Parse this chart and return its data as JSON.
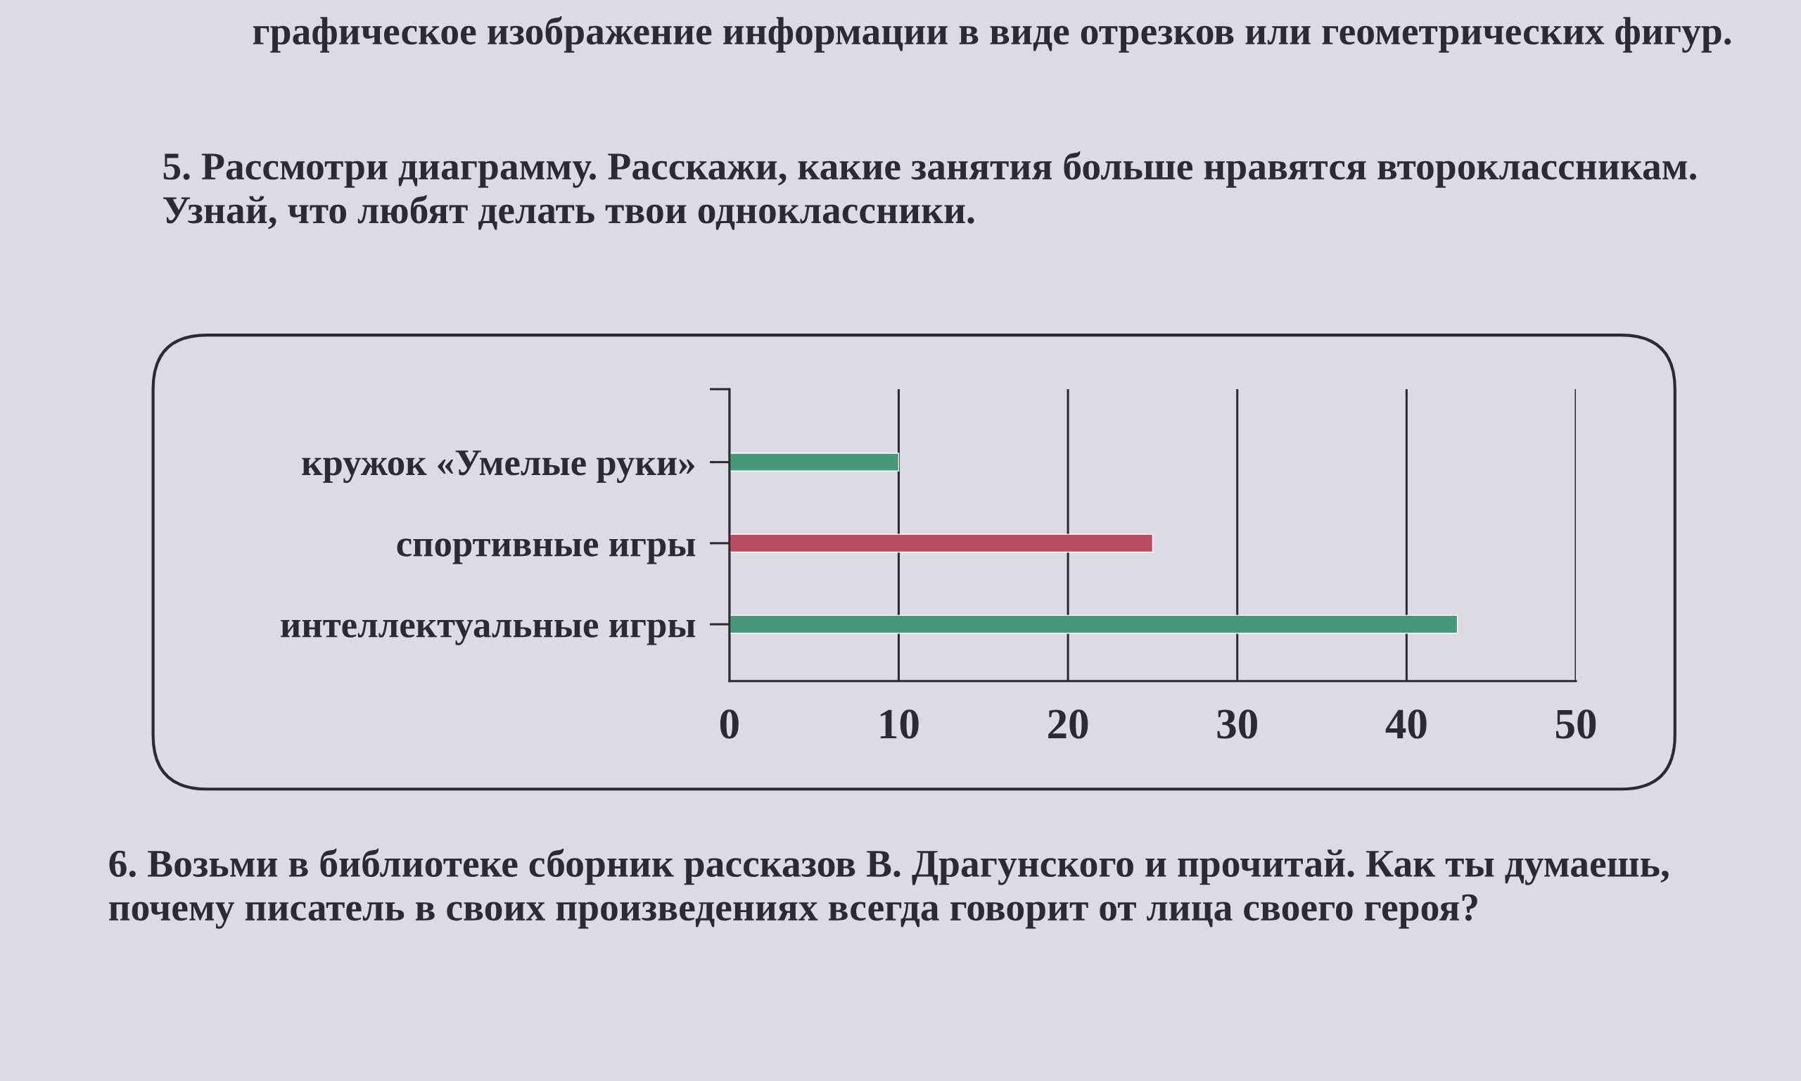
{
  "chart_data": {
    "type": "bar",
    "orientation": "horizontal",
    "title": "5. Рассмотри диаграмму. Расскажи, какие занятия больше нравятся второклассникам. Узнай, что любят делать твои одноклассники.",
    "categories": [
      "кружок «Умелые руки»",
      "спортивные игры",
      "интеллектуальные игры"
    ],
    "values": [
      10,
      25,
      43
    ],
    "colors": [
      "#47977a",
      "#b94a62",
      "#47977a"
    ],
    "xlim": [
      0,
      50
    ],
    "xticks": [
      0,
      10,
      20,
      30,
      40,
      50
    ],
    "grid": "x",
    "annotations": [
      "графическое изображение информации в виде отрезков или геометрических фигур.",
      "6. Возьми в библиотеке сборник рассказов В. Драгунского и прочитай. Как ты думаешь, почему писатель в своих произведениях всегда говорит от лица своего героя?"
    ]
  }
}
